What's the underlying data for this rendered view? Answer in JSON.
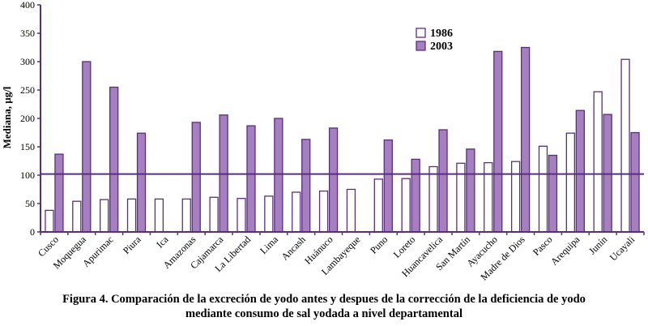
{
  "chart_data": {
    "type": "bar",
    "ylabel": "Mediana, µg/l",
    "ylim": [
      0,
      400
    ],
    "yticks": [
      0,
      50,
      100,
      150,
      200,
      250,
      300,
      350,
      400
    ],
    "reference_line": 102,
    "legend_position": "top-right",
    "categories": [
      "Cusco",
      "Moquegua",
      "Apurimac",
      "Piura",
      "Ica",
      "Amazonas",
      "Cajamarca",
      "La Libertad",
      "Lima",
      "Ancash",
      "Huánuco",
      "Lambayeque",
      "Puno",
      "Loreto",
      "Huancavelica",
      "San Martín",
      "Ayacucho",
      "Madre de Dios",
      "Pasco",
      "Arequipa",
      "Junín",
      "Ucayali"
    ],
    "series": [
      {
        "name": "1986",
        "color": "#ffffff",
        "values": [
          38,
          54,
          57,
          58,
          58,
          58,
          61,
          59,
          63,
          70,
          72,
          75,
          93,
          94,
          115,
          121,
          122,
          124,
          151,
          174,
          247,
          304
        ]
      },
      {
        "name": "2003",
        "color": "#a67fc0",
        "values": [
          137,
          300,
          255,
          174,
          null,
          193,
          206,
          187,
          200,
          163,
          183,
          null,
          162,
          128,
          180,
          146,
          318,
          325,
          135,
          214,
          207,
          175
        ]
      }
    ]
  },
  "caption": {
    "line1": "Figura 4. Comparación de la excreción de yodo antes y despues de la corrección de la deficiencia de yodo",
    "line2": "mediante consumo de sal yodada a nivel departamental"
  }
}
